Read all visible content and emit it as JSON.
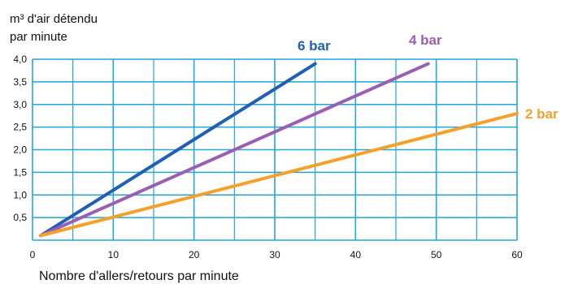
{
  "chart_data": {
    "type": "line",
    "ylabel_lines": [
      "m³ d'air détendu",
      "par minute"
    ],
    "xlabel": "Nombre d'allers/retours par minute",
    "xlim": [
      0,
      60
    ],
    "ylim": [
      0,
      4.0
    ],
    "x_ticks": [
      0,
      10,
      20,
      30,
      40,
      50,
      60
    ],
    "x_tick_labels": [
      "0",
      "10",
      "20",
      "30",
      "40",
      "50",
      "60"
    ],
    "y_ticks": [
      0.5,
      1.0,
      1.5,
      2.0,
      2.5,
      3.0,
      3.5,
      4.0
    ],
    "y_tick_labels": [
      "0,5",
      "1,0",
      "1,5",
      "2,0",
      "2,5",
      "3,0",
      "3,5",
      "4,0"
    ],
    "x_grid_step": 5,
    "y_grid_step": 0.5,
    "grid": true,
    "grid_color": "#22a5dc",
    "series": [
      {
        "name": "6 bar",
        "color": "#1f5fb4",
        "x": [
          1,
          35
        ],
        "y": [
          0.1,
          3.9
        ]
      },
      {
        "name": "4 bar",
        "color": "#9a5eb2",
        "x": [
          1,
          49
        ],
        "y": [
          0.1,
          3.9
        ]
      },
      {
        "name": "2 bar",
        "color": "#f4a12c",
        "x": [
          1,
          60
        ],
        "y": [
          0.1,
          2.8
        ]
      }
    ]
  }
}
